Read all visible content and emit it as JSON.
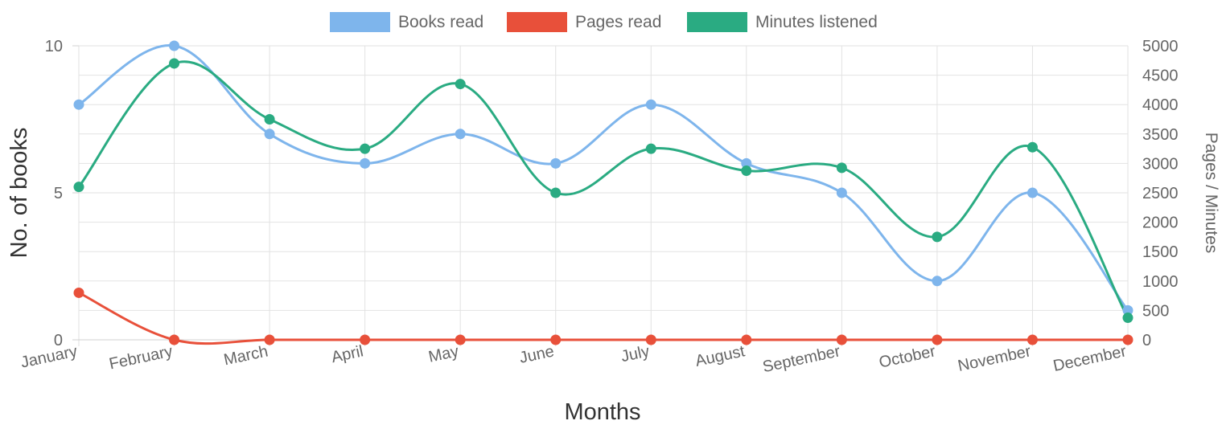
{
  "chart_data": {
    "type": "line",
    "categories": [
      "January",
      "February",
      "March",
      "April",
      "May",
      "June",
      "July",
      "August",
      "September",
      "October",
      "November",
      "December"
    ],
    "series": [
      {
        "name": "Books read",
        "axis": "left",
        "color": "#7eb5ec",
        "values": [
          8,
          10,
          7,
          6,
          7,
          6,
          8,
          6,
          5,
          2,
          5,
          1
        ]
      },
      {
        "name": "Pages read",
        "axis": "right",
        "color": "#e8503a",
        "values": [
          800,
          0,
          0,
          0,
          0,
          0,
          0,
          0,
          0,
          0,
          0,
          0
        ]
      },
      {
        "name": "Minutes listened",
        "axis": "right",
        "color": "#2aab82",
        "values": [
          2600,
          4700,
          3750,
          3250,
          4350,
          2500,
          3250,
          2875,
          2925,
          1750,
          3275,
          375
        ]
      }
    ],
    "xlabel": "Months",
    "ylabel": "No. of books",
    "y2label": "Pages / Minutes",
    "ylim": [
      0,
      10
    ],
    "y2lim": [
      0,
      5000
    ],
    "yticks": [
      "0",
      "5",
      "10"
    ],
    "y2ticks": [
      "0",
      "500",
      "1000",
      "1500",
      "2000",
      "2500",
      "3000",
      "3500",
      "4000",
      "4500",
      "5000"
    ],
    "legend_position": "top-center",
    "grid": true
  }
}
